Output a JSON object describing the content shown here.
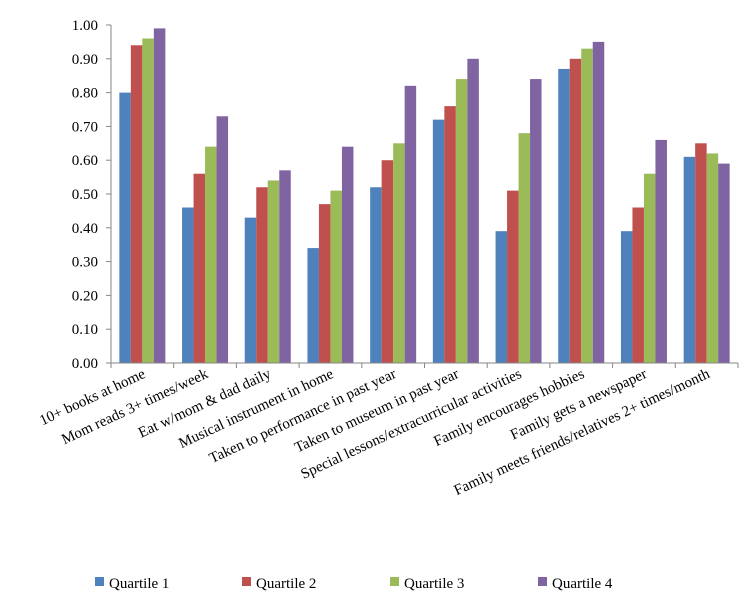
{
  "chart_data": {
    "type": "bar",
    "title": "",
    "xlabel": "",
    "ylabel": "",
    "ylim": [
      0,
      1
    ],
    "y_ticks": [
      "0.00",
      "0.10",
      "0.20",
      "0.30",
      "0.40",
      "0.50",
      "0.60",
      "0.70",
      "0.80",
      "0.90",
      "1.00"
    ],
    "grid": false,
    "legend_position": "bottom",
    "categories": [
      "10+ books at home",
      "Mom reads 3+ times/week",
      "Eat w/mom & dad daily",
      "Musical instrument in home",
      "Taken to performance in past year",
      "Taken to museum in past year",
      "Special lessons/extracurricular activities",
      "Family encourages hobbies",
      "Family gets a newspaper",
      "Family meets friends/relatives 2+ times/month"
    ],
    "series": [
      {
        "name": "Quartile 1",
        "color": "#4F81BD",
        "values": [
          0.8,
          0.46,
          0.43,
          0.34,
          0.52,
          0.72,
          0.39,
          0.87,
          0.39,
          0.61
        ]
      },
      {
        "name": "Quartile 2",
        "color": "#C0504D",
        "values": [
          0.94,
          0.56,
          0.52,
          0.47,
          0.6,
          0.76,
          0.51,
          0.9,
          0.46,
          0.65
        ]
      },
      {
        "name": "Quartile 3",
        "color": "#9BBB59",
        "values": [
          0.96,
          0.64,
          0.54,
          0.51,
          0.65,
          0.84,
          0.68,
          0.93,
          0.56,
          0.62
        ]
      },
      {
        "name": "Quartile 4",
        "color": "#8064A2",
        "values": [
          0.99,
          0.73,
          0.57,
          0.64,
          0.82,
          0.9,
          0.84,
          0.95,
          0.66,
          0.59
        ]
      }
    ]
  }
}
